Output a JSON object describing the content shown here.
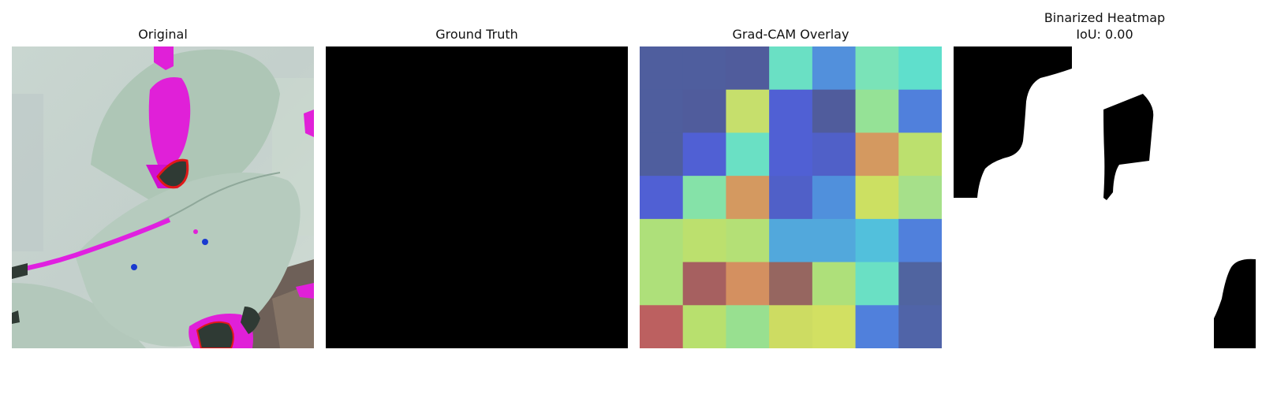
{
  "panels": [
    {
      "title": "Original"
    },
    {
      "title": "Ground Truth"
    },
    {
      "title": "Grad-CAM Overlay"
    },
    {
      "title": "Binarized Heatmap",
      "subtitle": "IoU: 0.00"
    }
  ],
  "gradcam_grid": [
    [
      "#4f5e9e",
      "#4f5e9e",
      "#505c9c",
      "#6ae0c4",
      "#5290dc",
      "#7ae3b8",
      "#5fdfcc"
    ],
    [
      "#4f5e9e",
      "#505c9c",
      "#c6df6c",
      "#5060d4",
      "#505c9c",
      "#95e296",
      "#5080dc"
    ],
    [
      "#4f5e9e",
      "#5060d4",
      "#6ae0c4",
      "#5060d4",
      "#5060c8",
      "#d49960",
      "#bce06e"
    ],
    [
      "#5060d4",
      "#85e2a8",
      "#d49960",
      "#5060c8",
      "#5090dc",
      "#cce062",
      "#a6e08a"
    ],
    [
      "#aee07a",
      "#bce06e",
      "#b4e076",
      "#52a8dc",
      "#52a8dc",
      "#52c0dc",
      "#5080dc"
    ],
    [
      "#aee07a",
      "#a66060",
      "#d49060",
      "#966660",
      "#aee07a",
      "#6ae0c4",
      "#5064a0"
    ],
    [
      "#bc6060",
      "#b8e06e",
      "#98e090",
      "#cddc62",
      "#d2e062",
      "#5080dc",
      "#5064a8"
    ]
  ]
}
